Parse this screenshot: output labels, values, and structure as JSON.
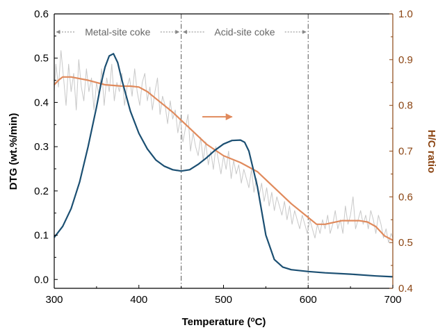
{
  "chart_data": {
    "type": "line",
    "xlabel": "Temperature (oC)",
    "xlabel_main": "Temperature (",
    "xlabel_sup": "o",
    "xlabel_end": "C)",
    "ylabel": "DTG (wt.%/min)",
    "y2label": "H/C ratio",
    "xlim": [
      300,
      700
    ],
    "ylim": [
      -0.02,
      0.6
    ],
    "y2lim": [
      0.4,
      1.0
    ],
    "x_ticks": [
      300,
      400,
      500,
      600,
      700
    ],
    "y_ticks": [
      0.0,
      0.1,
      0.2,
      0.3,
      0.4,
      0.5,
      0.6
    ],
    "y2_ticks": [
      0.4,
      0.5,
      0.6,
      0.7,
      0.8,
      0.9,
      1.0
    ],
    "grid": false,
    "colors": {
      "dtg": "#1b4f72",
      "hc_smooth": "#e08a5c",
      "hc_raw": "#c8c8c8",
      "right_axis": "#8b4513",
      "divider": "#555555",
      "arrow": "#e08a5c",
      "region_arrow": "#888888"
    },
    "dividers": [
      450,
      600
    ],
    "regions": [
      {
        "label": "Metal-site coke",
        "x_start": 300,
        "x_end": 450
      },
      {
        "label": "Acid-site coke",
        "x_start": 450,
        "x_end": 600
      }
    ],
    "annotation_arrow": {
      "x_start": 475,
      "x_end": 510,
      "y2": 0.775
    },
    "series": [
      {
        "key": "dtg",
        "axis": "left",
        "x": [
          300,
          310,
          320,
          330,
          340,
          350,
          355,
          360,
          365,
          370,
          375,
          380,
          390,
          400,
          410,
          420,
          430,
          440,
          450,
          460,
          470,
          480,
          490,
          500,
          510,
          520,
          525,
          530,
          540,
          550,
          560,
          570,
          580,
          600,
          620,
          650,
          680,
          700
        ],
        "y": [
          0.095,
          0.12,
          0.16,
          0.22,
          0.3,
          0.39,
          0.44,
          0.48,
          0.505,
          0.51,
          0.49,
          0.45,
          0.38,
          0.33,
          0.295,
          0.27,
          0.256,
          0.248,
          0.245,
          0.248,
          0.26,
          0.275,
          0.292,
          0.306,
          0.314,
          0.315,
          0.31,
          0.29,
          0.21,
          0.1,
          0.045,
          0.028,
          0.022,
          0.018,
          0.015,
          0.012,
          0.008,
          0.006
        ]
      },
      {
        "key": "hc_smooth",
        "axis": "right",
        "x": [
          300,
          305,
          310,
          320,
          340,
          360,
          380,
          390,
          400,
          410,
          420,
          440,
          460,
          480,
          500,
          520,
          540,
          560,
          580,
          600,
          610,
          620,
          640,
          660,
          670,
          680,
          690,
          700
        ],
        "y": [
          0.845,
          0.855,
          0.862,
          0.862,
          0.855,
          0.845,
          0.842,
          0.842,
          0.84,
          0.83,
          0.815,
          0.785,
          0.75,
          0.715,
          0.69,
          0.675,
          0.655,
          0.62,
          0.585,
          0.555,
          0.54,
          0.54,
          0.548,
          0.548,
          0.545,
          0.535,
          0.515,
          0.505
        ]
      },
      {
        "key": "hc_raw",
        "axis": "right",
        "x": [
          300,
          302,
          305,
          308,
          311,
          314,
          317,
          320,
          323,
          326,
          329,
          332,
          335,
          338,
          341,
          344,
          347,
          350,
          353,
          356,
          359,
          362,
          365,
          368,
          371,
          374,
          377,
          380,
          383,
          386,
          389,
          392,
          395,
          398,
          401,
          404,
          407,
          410,
          413,
          416,
          419,
          422,
          425,
          428,
          431,
          434,
          437,
          440,
          443,
          446,
          449,
          452,
          455,
          458,
          461,
          464,
          467,
          470,
          473,
          476,
          479,
          482,
          485,
          488,
          491,
          494,
          497,
          500,
          503,
          506,
          509,
          512,
          515,
          518,
          521,
          524,
          527,
          530,
          533,
          536,
          539,
          542,
          545,
          548,
          551,
          554,
          557,
          560,
          563,
          566,
          569,
          572,
          575,
          578,
          581,
          584,
          587,
          590,
          593,
          596,
          599,
          602,
          605,
          608,
          611,
          614,
          617,
          620,
          623,
          626,
          629,
          632,
          635,
          638,
          641,
          644,
          647,
          650,
          653,
          656,
          659,
          662,
          665,
          668,
          671,
          674,
          677,
          680,
          683,
          686,
          689,
          692,
          695,
          698,
          700
        ],
        "y": [
          0.83,
          0.89,
          0.84,
          0.92,
          0.86,
          0.8,
          0.89,
          0.83,
          0.87,
          0.79,
          0.9,
          0.84,
          0.81,
          0.88,
          0.83,
          0.86,
          0.79,
          0.85,
          0.82,
          0.88,
          0.8,
          0.86,
          0.83,
          0.89,
          0.81,
          0.85,
          0.83,
          0.87,
          0.8,
          0.84,
          0.86,
          0.82,
          0.88,
          0.83,
          0.8,
          0.85,
          0.87,
          0.81,
          0.84,
          0.79,
          0.83,
          0.86,
          0.78,
          0.82,
          0.8,
          0.76,
          0.81,
          0.77,
          0.79,
          0.74,
          0.77,
          0.72,
          0.75,
          0.78,
          0.7,
          0.74,
          0.71,
          0.69,
          0.73,
          0.68,
          0.72,
          0.67,
          0.7,
          0.66,
          0.71,
          0.68,
          0.65,
          0.69,
          0.66,
          0.7,
          0.64,
          0.68,
          0.65,
          0.67,
          0.63,
          0.66,
          0.64,
          0.62,
          0.66,
          0.61,
          0.64,
          0.6,
          0.63,
          0.59,
          0.62,
          0.58,
          0.61,
          0.57,
          0.6,
          0.58,
          0.56,
          0.59,
          0.55,
          0.58,
          0.54,
          0.57,
          0.55,
          0.53,
          0.56,
          0.54,
          0.52,
          0.55,
          0.53,
          0.51,
          0.54,
          0.52,
          0.55,
          0.53,
          0.56,
          0.52,
          0.54,
          0.57,
          0.53,
          0.55,
          0.52,
          0.58,
          0.54,
          0.56,
          0.6,
          0.53,
          0.55,
          0.57,
          0.54,
          0.56,
          0.53,
          0.57,
          0.55,
          0.52,
          0.56,
          0.54,
          0.51,
          0.53,
          0.5,
          0.52,
          0.51
        ]
      }
    ]
  }
}
